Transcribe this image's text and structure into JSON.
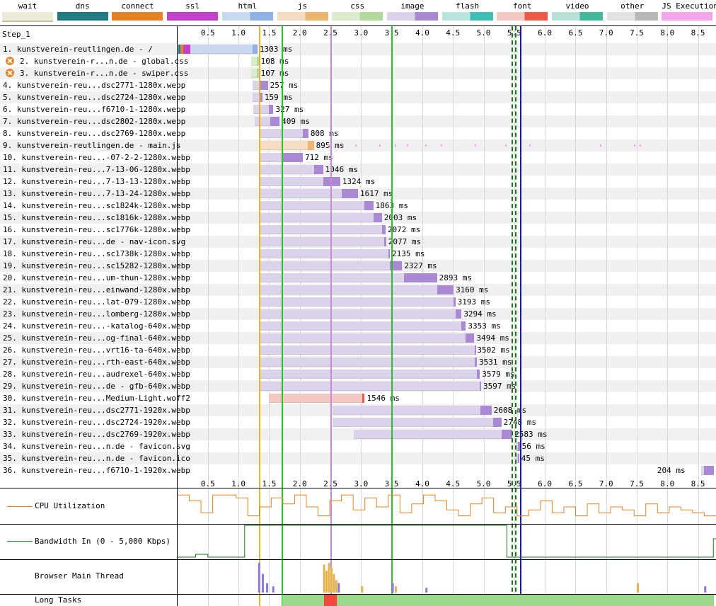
{
  "legend": [
    {
      "label": "wait",
      "color": "#ecebd7",
      "dark": "#ecebd7"
    },
    {
      "label": "dns",
      "color": "#1f7c83",
      "dark": "#1f7c83"
    },
    {
      "label": "connect",
      "color": "#e58226",
      "dark": "#e58226"
    },
    {
      "label": "ssl",
      "color": "#c141cd",
      "dark": "#c141cd"
    },
    {
      "label": "html",
      "color": "#c9d7f0",
      "dark": "#8fb1e6"
    },
    {
      "label": "js",
      "color": "#f6dcc2",
      "dark": "#efb372"
    },
    {
      "label": "css",
      "color": "#daeccc",
      "dark": "#b2d89a"
    },
    {
      "label": "image",
      "color": "#dcd2e9",
      "dark": "#a989d3"
    },
    {
      "label": "flash",
      "color": "#b8e4e0",
      "dark": "#3fbdb6"
    },
    {
      "label": "font",
      "color": "#f4c7c2",
      "dark": "#ee5a4a"
    },
    {
      "label": "video",
      "color": "#b6e0d8",
      "dark": "#42b99c"
    },
    {
      "label": "other",
      "color": "#e2e2e2",
      "dark": "#b8b8b8"
    },
    {
      "label": "JS Execution",
      "color": "#f7a4ef",
      "dark": "#f7a4ef"
    }
  ],
  "step_label": "Step_1",
  "ticks": [
    "0.5",
    "1.0",
    "1.5",
    "2.0",
    "2.5",
    "3.0",
    "3.5",
    "4.0",
    "4.5",
    "5.0",
    "5.5",
    "6.0",
    "6.5",
    "7.0",
    "7.5",
    "8.0",
    "8.5"
  ],
  "requests": [
    {
      "label": "1. kunstverein-reutlingen.de - /",
      "dur": "1303 ms",
      "type": "html",
      "start": 0.02,
      "ttfb": 1.23,
      "end": 1.31,
      "error": false
    },
    {
      "label": "2. kunstverein-r...n.de - global.css",
      "dur": "108 ms",
      "type": "css",
      "start": 1.21,
      "ttfb": 1.3,
      "end": 1.33,
      "error": true
    },
    {
      "label": "3. kunstverein-r...n.de - swiper.css",
      "dur": "107 ms",
      "type": "css",
      "start": 1.21,
      "ttfb": 1.3,
      "end": 1.33,
      "error": true
    },
    {
      "label": "4. kunstverein-reu...dsc2771-1280x.webp",
      "dur": "257 ms",
      "type": "image",
      "start": 1.23,
      "ttfb": 1.35,
      "end": 1.48,
      "error": false
    },
    {
      "label": "5. kunstverein-reu...dsc2724-1280x.webp",
      "dur": "159 ms",
      "type": "image",
      "start": 1.23,
      "ttfb": 1.33,
      "end": 1.39,
      "error": false
    },
    {
      "label": "6. kunstverein-reu...f6710-1-1280x.webp",
      "dur": "327 ms",
      "type": "image",
      "start": 1.24,
      "ttfb": 1.5,
      "end": 1.57,
      "error": false
    },
    {
      "label": "7. kunstverein-reu...dsc2802-1280x.webp",
      "dur": "409 ms",
      "type": "image",
      "start": 1.26,
      "ttfb": 1.52,
      "end": 1.67,
      "error": false
    },
    {
      "label": "8. kunstverein-reu...dsc2769-1280x.webp",
      "dur": "808 ms",
      "type": "image",
      "start": 1.33,
      "ttfb": 2.05,
      "end": 2.14,
      "error": false
    },
    {
      "label": "9. kunstverein-reutlingen.de - main.js",
      "dur": "895 ms",
      "type": "js",
      "start": 1.33,
      "ttfb": 2.13,
      "end": 2.23,
      "error": false
    },
    {
      "label": "10. kunstverein-reu...-07-2-2-1280x.webp",
      "dur": "712 ms",
      "type": "image",
      "start": 1.33,
      "ttfb": 1.73,
      "end": 2.05,
      "error": false
    },
    {
      "label": "11. kunstverein-reu...7-13-06-1280x.webp",
      "dur": "1046 ms",
      "type": "image",
      "start": 1.33,
      "ttfb": 2.23,
      "end": 2.38,
      "error": false
    },
    {
      "label": "12. kunstverein-reu...7-13-13-1280x.webp",
      "dur": "1324 ms",
      "type": "image",
      "start": 1.33,
      "ttfb": 2.38,
      "end": 2.66,
      "error": false
    },
    {
      "label": "13. kunstverein-reu...7-13-24-1280x.webp",
      "dur": "1617 ms",
      "type": "image",
      "start": 1.33,
      "ttfb": 2.68,
      "end": 2.95,
      "error": false
    },
    {
      "label": "14. kunstverein-reu...sc1824k-1280x.webp",
      "dur": "1863 ms",
      "type": "image",
      "start": 1.33,
      "ttfb": 3.05,
      "end": 3.2,
      "error": false
    },
    {
      "label": "15. kunstverein-reu...sc1816k-1280x.webp",
      "dur": "2003 ms",
      "type": "image",
      "start": 1.33,
      "ttfb": 3.2,
      "end": 3.34,
      "error": false
    },
    {
      "label": "16. kunstverein-reu...sc1776k-1280x.webp",
      "dur": "2072 ms",
      "type": "image",
      "start": 1.33,
      "ttfb": 3.34,
      "end": 3.4,
      "error": false
    },
    {
      "label": "17. kunstverein-reu...de - nav-icon.svg",
      "dur": "2077 ms",
      "type": "image",
      "start": 1.33,
      "ttfb": 3.38,
      "end": 3.41,
      "error": false
    },
    {
      "label": "18. kunstverein-reu...sc1738k-1280x.webp",
      "dur": "2135 ms",
      "type": "image",
      "start": 1.33,
      "ttfb": 3.45,
      "end": 3.47,
      "error": false
    },
    {
      "label": "19. kunstverein-reu...sc15282-1280x.webp",
      "dur": "2327 ms",
      "type": "image",
      "start": 1.33,
      "ttfb": 3.47,
      "end": 3.67,
      "error": false
    },
    {
      "label": "20. kunstverein-reu...um-thun-1280x.webp",
      "dur": "2893 ms",
      "type": "image",
      "start": 1.33,
      "ttfb": 3.7,
      "end": 4.24,
      "error": false
    },
    {
      "label": "21. kunstverein-reu...einwand-1280x.webp",
      "dur": "3160 ms",
      "type": "image",
      "start": 1.33,
      "ttfb": 4.24,
      "end": 4.51,
      "error": false
    },
    {
      "label": "22. kunstverein-reu...lat-079-1280x.webp",
      "dur": "3193 ms",
      "type": "image",
      "start": 1.33,
      "ttfb": 4.51,
      "end": 4.54,
      "error": false
    },
    {
      "label": "23. kunstverein-reu...lomberg-1280x.webp",
      "dur": "3294 ms",
      "type": "image",
      "start": 1.33,
      "ttfb": 4.54,
      "end": 4.64,
      "error": false
    },
    {
      "label": "24. kunstverein-reu...-katalog-640x.webp",
      "dur": "3353 ms",
      "type": "image",
      "start": 1.33,
      "ttfb": 4.64,
      "end": 4.71,
      "error": false
    },
    {
      "label": "25. kunstverein-reu...og-final-640x.webp",
      "dur": "3494 ms",
      "type": "image",
      "start": 1.33,
      "ttfb": 4.71,
      "end": 4.85,
      "error": false
    },
    {
      "label": "26. kunstverein-reu...vrt16-ta-640x.webp",
      "dur": "3502 ms",
      "type": "image",
      "start": 1.33,
      "ttfb": 4.85,
      "end": 4.86,
      "error": false
    },
    {
      "label": "27. kunstverein-reu...rth-east-640x.webp",
      "dur": "3531 ms",
      "type": "image",
      "start": 1.33,
      "ttfb": 4.86,
      "end": 4.89,
      "error": false
    },
    {
      "label": "28. kunstverein-reu...audrexel-640x.webp",
      "dur": "3579 ms",
      "type": "image",
      "start": 1.33,
      "ttfb": 4.89,
      "end": 4.94,
      "error": false
    },
    {
      "label": "29. kunstverein-reu...de - gfb-640x.webp",
      "dur": "3597 ms",
      "type": "image",
      "start": 1.33,
      "ttfb": 4.94,
      "end": 4.96,
      "error": false
    },
    {
      "label": "30. kunstverein-reu...Medium-Light.woff2",
      "dur": "1546 ms",
      "type": "font",
      "start": 1.5,
      "ttfb": 3.02,
      "end": 3.06,
      "error": false
    },
    {
      "label": "31. kunstverein-reu...dsc2771-1920x.webp",
      "dur": "2608 ms",
      "type": "image",
      "start": 2.53,
      "ttfb": 4.95,
      "end": 5.13,
      "error": false
    },
    {
      "label": "32. kunstverein-reu...dsc2724-1920x.webp",
      "dur": "2748 ms",
      "type": "image",
      "start": 2.54,
      "ttfb": 5.16,
      "end": 5.29,
      "error": false
    },
    {
      "label": "33. kunstverein-reu...dsc2769-1920x.webp",
      "dur": "2583 ms",
      "type": "image",
      "start": 2.88,
      "ttfb": 5.3,
      "end": 5.47,
      "error": false
    },
    {
      "label": "34. kunstverein-reu...n.de - favicon.svg",
      "dur": "56 ms",
      "type": "image",
      "start": 5.53,
      "ttfb": 5.56,
      "end": 5.59,
      "error": false
    },
    {
      "label": "35. kunstverein-reu...n.de - favicon.ico",
      "dur": "45 ms",
      "type": "image",
      "start": 5.53,
      "ttfb": 5.56,
      "end": 5.58,
      "error": false
    },
    {
      "label": "36. kunstverein-reu...f6710-1-1920x.webp",
      "dur": "204 ms",
      "type": "image",
      "start": 8.55,
      "ttfb": 8.6,
      "end": 8.76,
      "error": false
    }
  ],
  "sections": {
    "cpu": "CPU Utilization",
    "bandwidth": "Bandwidth In (0 - 5,000 Kbps)",
    "main_thread": "Browser Main Thread",
    "long_tasks": "Long Tasks"
  },
  "markers": [
    {
      "t": 1.34,
      "color": "#f5b400",
      "style": "solid"
    },
    {
      "t": 1.72,
      "color": "#28c228",
      "style": "solid"
    },
    {
      "t": 2.51,
      "color": "#c88ad8",
      "style": "solid"
    },
    {
      "t": 3.51,
      "color": "#28c228",
      "style": "solid"
    },
    {
      "t": 5.47,
      "color": "#157a15",
      "style": "dashed"
    },
    {
      "t": 5.53,
      "color": "#157a15",
      "style": "dashed"
    },
    {
      "t": 5.61,
      "color": "#1616b4",
      "style": "solid"
    }
  ],
  "long_tasks": [
    {
      "start": 1.72,
      "end": 2.4,
      "color": "#98d98e"
    },
    {
      "start": 2.4,
      "end": 2.6,
      "color": "#f04a3c"
    },
    {
      "start": 2.6,
      "end": 8.76,
      "color": "#98d98e"
    }
  ]
}
